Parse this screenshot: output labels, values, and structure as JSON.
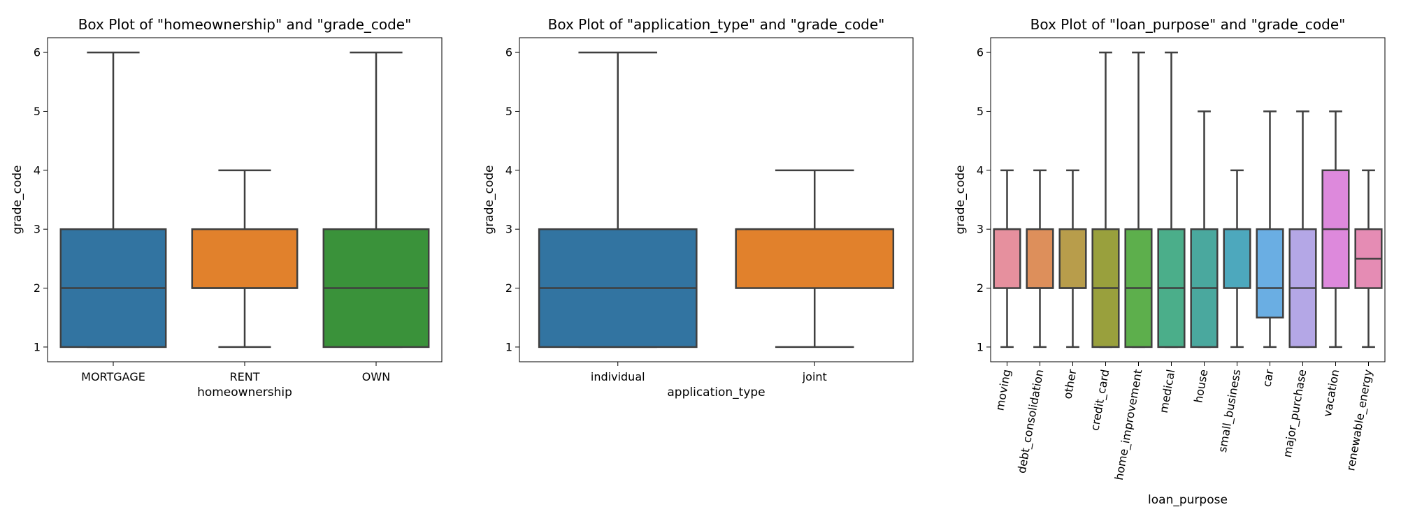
{
  "chart_data": [
    {
      "type": "box",
      "title": "Box Plot of \"homeownership\" and \"grade_code\"",
      "xlabel": "homeownership",
      "ylabel": "grade_code",
      "ylim": [
        0.75,
        6.25
      ],
      "yticks": [
        1,
        2,
        3,
        4,
        5,
        6
      ],
      "categories": [
        "MORTGAGE",
        "RENT",
        "OWN"
      ],
      "xtick_rotation": 0,
      "boxes": [
        {
          "category": "MORTGAGE",
          "min": 1,
          "q1": 1,
          "median": 2,
          "q3": 3,
          "max": 6,
          "color": "#3274a1"
        },
        {
          "category": "RENT",
          "min": 1,
          "q1": 2,
          "median": 2,
          "q3": 3,
          "max": 4,
          "color": "#e1812c"
        },
        {
          "category": "OWN",
          "min": 1,
          "q1": 1,
          "median": 2,
          "q3": 3,
          "max": 6,
          "color": "#3a923a"
        }
      ]
    },
    {
      "type": "box",
      "title": "Box Plot of \"application_type\" and \"grade_code\"",
      "xlabel": "application_type",
      "ylabel": "grade_code",
      "ylim": [
        0.75,
        6.25
      ],
      "yticks": [
        1,
        2,
        3,
        4,
        5,
        6
      ],
      "categories": [
        "individual",
        "joint"
      ],
      "xtick_rotation": 0,
      "boxes": [
        {
          "category": "individual",
          "min": 1,
          "q1": 1,
          "median": 2,
          "q3": 3,
          "max": 6,
          "color": "#3274a1"
        },
        {
          "category": "joint",
          "min": 1,
          "q1": 2,
          "median": 3,
          "q3": 3,
          "max": 4,
          "color": "#e1812c"
        }
      ]
    },
    {
      "type": "box",
      "title": "Box Plot of \"loan_purpose\" and \"grade_code\"",
      "xlabel": "loan_purpose",
      "ylabel": "grade_code",
      "ylim": [
        0.75,
        6.25
      ],
      "yticks": [
        1,
        2,
        3,
        4,
        5,
        6
      ],
      "categories": [
        "moving",
        "debt_consolidation",
        "other",
        "credit_card",
        "home_improvement",
        "medical",
        "house",
        "small_business",
        "car",
        "major_purchase",
        "vacation",
        "renewable_energy"
      ],
      "xtick_rotation": -80,
      "boxes": [
        {
          "category": "moving",
          "min": 1,
          "q1": 2,
          "median": 3,
          "q3": 3,
          "max": 4,
          "color": "#e6909e"
        },
        {
          "category": "debt_consolidation",
          "min": 1,
          "q1": 2,
          "median": 2,
          "q3": 3,
          "max": 4,
          "color": "#dd8f5b"
        },
        {
          "category": "other",
          "min": 1,
          "q1": 2,
          "median": 2,
          "q3": 3,
          "max": 4,
          "color": "#b89d4b"
        },
        {
          "category": "credit_card",
          "min": 1,
          "q1": 1,
          "median": 2,
          "q3": 3,
          "max": 6,
          "color": "#99a03d"
        },
        {
          "category": "home_improvement",
          "min": 1,
          "q1": 1,
          "median": 2,
          "q3": 3,
          "max": 6,
          "color": "#5daf4c"
        },
        {
          "category": "medical",
          "min": 1,
          "q1": 1,
          "median": 2,
          "q3": 3,
          "max": 6,
          "color": "#4bae8a"
        },
        {
          "category": "house",
          "min": 1,
          "q1": 1,
          "median": 2,
          "q3": 3,
          "max": 5,
          "color": "#4aa89e"
        },
        {
          "category": "small_business",
          "min": 1,
          "q1": 2,
          "median": 3,
          "q3": 3,
          "max": 4,
          "color": "#4da8bd"
        },
        {
          "category": "car",
          "min": 1,
          "q1": 1.5,
          "median": 2,
          "q3": 3,
          "max": 5,
          "color": "#6aaee3"
        },
        {
          "category": "major_purchase",
          "min": 1,
          "q1": 1,
          "median": 2,
          "q3": 3,
          "max": 5,
          "color": "#b4a7e6"
        },
        {
          "category": "vacation",
          "min": 1,
          "q1": 2,
          "median": 3,
          "q3": 4,
          "max": 5,
          "color": "#dd89dc"
        },
        {
          "category": "renewable_energy",
          "min": 1,
          "q1": 2,
          "median": 2.5,
          "q3": 3,
          "max": 4,
          "color": "#e58cb4"
        }
      ]
    }
  ]
}
